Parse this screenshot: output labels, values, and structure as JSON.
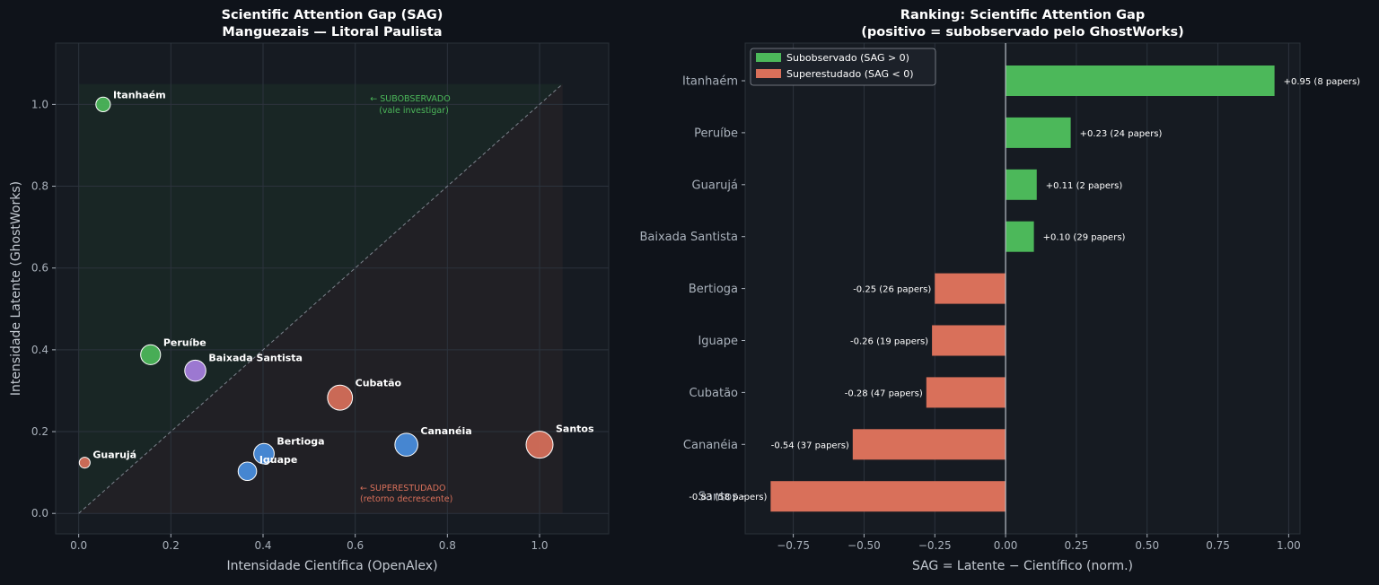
{
  "colors": {
    "background": "#0f131a",
    "plot_bg": "#161b22",
    "grid": "#2c333d",
    "text_light": "#ffffff",
    "text_muted": "#a9b1bb",
    "green": "#4cb85a",
    "red": "#d9705a",
    "blue": "#4a8fe0",
    "purple": "#a77fe0",
    "underobserved_text": "#4cb85a",
    "overstudied_text": "#d9705a"
  },
  "chart_data": [
    {
      "type": "scatter",
      "title": "Scientific Attention Gap (SAG)",
      "subtitle": "Manguezais — Litoral Paulista",
      "xlabel": "Intensidade Científica (OpenAlex)",
      "ylabel": "Intensidade Latente (GhostWorks)",
      "xlim": [
        -0.05,
        1.15
      ],
      "ylim": [
        -0.05,
        1.15
      ],
      "xticks": [
        "0.0",
        "0.2",
        "0.4",
        "0.6",
        "0.8",
        "1.0"
      ],
      "yticks": [
        "0.0",
        "0.2",
        "0.4",
        "0.6",
        "0.8",
        "1.0"
      ],
      "grid": true,
      "annotations": {
        "underobserved": [
          "← SUBOBSERVADO",
          "(vale investigar)"
        ],
        "overstudied": [
          "← SUPERESTUDADO",
          "(retorno decrescente)"
        ]
      },
      "points": [
        {
          "label": "Itanhaém",
          "x": 0.053,
          "y": 1.0,
          "papers": 8,
          "color": "#4cb85a"
        },
        {
          "label": "Peruíbe",
          "x": 0.156,
          "y": 0.388,
          "papers": 24,
          "color": "#4cb85a"
        },
        {
          "label": "Baixada Santista",
          "x": 0.253,
          "y": 0.349,
          "papers": 29,
          "color": "#a77fe0"
        },
        {
          "label": "Cubatão",
          "x": 0.567,
          "y": 0.283,
          "papers": 47,
          "color": "#d9705a"
        },
        {
          "label": "Guarujá",
          "x": 0.013,
          "y": 0.124,
          "papers": 2,
          "color": "#d9705a"
        },
        {
          "label": "Bertioga",
          "x": 0.402,
          "y": 0.146,
          "papers": 26,
          "color": "#4a8fe0"
        },
        {
          "label": "Iguape",
          "x": 0.366,
          "y": 0.103,
          "papers": 19,
          "color": "#4a8fe0"
        },
        {
          "label": "Cananéia",
          "x": 0.711,
          "y": 0.168,
          "papers": 37,
          "color": "#4a8fe0"
        },
        {
          "label": "Santos",
          "x": 1.0,
          "y": 0.168,
          "papers": 58,
          "color": "#d9705a"
        }
      ]
    },
    {
      "type": "bar",
      "orientation": "horizontal",
      "title": "Ranking: Scientific Attention Gap",
      "subtitle": "(positivo = subobservado pelo GhostWorks)",
      "xlabel": "SAG = Latente − Científico (norm.)",
      "xlim": [
        -0.92,
        1.04
      ],
      "xticks": [
        "−0.75",
        "−0.50",
        "−0.25",
        "0.00",
        "0.25",
        "0.50",
        "0.75",
        "1.00"
      ],
      "xtick_values": [
        -0.75,
        -0.5,
        -0.25,
        0,
        0.25,
        0.5,
        0.75,
        1.0
      ],
      "grid": true,
      "legend": {
        "placement": "upper-left",
        "entries": [
          {
            "label": "Subobservado (SAG > 0)",
            "color": "#4cb85a"
          },
          {
            "label": "Superestudado (SAG < 0)",
            "color": "#d9705a"
          }
        ]
      },
      "categories": [
        "Itanhaém",
        "Peruíbe",
        "Guarujá",
        "Baixada Santista",
        "Bertioga",
        "Iguape",
        "Cubatão",
        "Cananéia",
        "Santos"
      ],
      "values": [
        0.95,
        0.23,
        0.11,
        0.1,
        -0.25,
        -0.26,
        -0.28,
        -0.54,
        -0.83
      ],
      "data_labels": [
        "+0.95  (8 papers)",
        "+0.23  (24 papers)",
        "+0.11  (2 papers)",
        "+0.10  (29 papers)",
        "-0.25  (26 papers)",
        "-0.26  (19 papers)",
        "-0.28  (47 papers)",
        "-0.54  (37 papers)",
        "-0.83  (58 papers)"
      ]
    }
  ]
}
